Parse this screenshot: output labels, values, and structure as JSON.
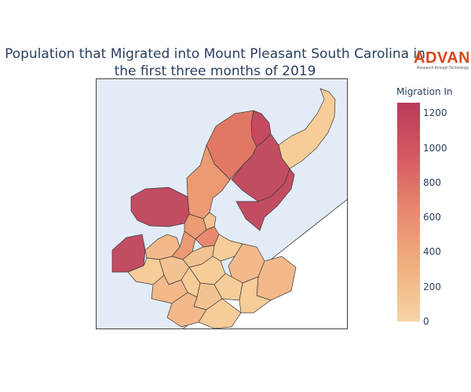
{
  "title_line1": "Population that Migrated into Mount Pleasant South Carolina in",
  "title_line2": "the first three months of 2019",
  "logo": {
    "word": "ADVAN",
    "tagline": "Research through Technology"
  },
  "colorbar": {
    "title": "Migration In",
    "ticks": [
      "1200",
      "1000",
      "800",
      "600",
      "400",
      "200",
      "0"
    ],
    "range": [
      0,
      1260
    ],
    "colorscale": [
      "#f5d4a3",
      "#f0b07e",
      "#e88a6f",
      "#d65a61",
      "#b73b59"
    ]
  },
  "colors": {
    "water": "#e3ecf6",
    "land_outside": "#ffffff",
    "border": "#3a3a3a"
  }
}
